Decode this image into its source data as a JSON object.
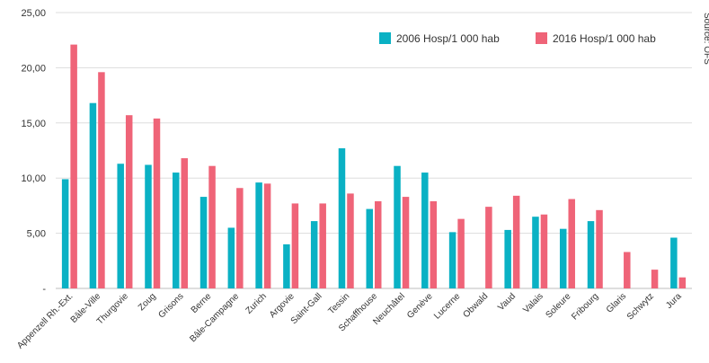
{
  "chart_data": {
    "type": "bar",
    "categories": [
      "Appenzell Rh.-Ext.",
      "Bâle-Ville",
      "Thurgovie",
      "Zoug",
      "Grisons",
      "Berne",
      "Bâle-Campagne",
      "Zurich",
      "Argovie",
      "Saint-Gall",
      "Tessin",
      "Schaffhouse",
      "Neuchâtel",
      "Genève",
      "Lucerne",
      "Obwald",
      "Vaud",
      "Valais",
      "Soleure",
      "Fribourg",
      "Glaris",
      "Schwytz",
      "Jura"
    ],
    "series": [
      {
        "name": "2006 Hosp/1 000 hab",
        "color": "#0ab1c4",
        "values": [
          9.9,
          16.8,
          11.3,
          11.2,
          10.5,
          8.3,
          5.5,
          9.6,
          4.0,
          6.1,
          12.7,
          7.2,
          11.1,
          10.5,
          5.1,
          null,
          5.3,
          6.5,
          5.4,
          6.1,
          null,
          null,
          4.6
        ]
      },
      {
        "name": "2016 Hosp/1 000 hab",
        "color": "#ef6478",
        "values": [
          22.1,
          19.6,
          15.7,
          15.4,
          11.8,
          11.1,
          9.1,
          9.5,
          7.7,
          7.7,
          8.6,
          7.9,
          8.3,
          7.9,
          6.3,
          7.4,
          8.4,
          6.7,
          8.1,
          7.1,
          3.3,
          1.7,
          1.0
        ]
      }
    ],
    "yticks": [
      "-",
      "5,00",
      "10,00",
      "15,00",
      "20,00",
      "25,00"
    ],
    "ylim": [
      0,
      25
    ],
    "grid": true,
    "legend_position": "top-right",
    "source_note": "Source: OFS"
  }
}
